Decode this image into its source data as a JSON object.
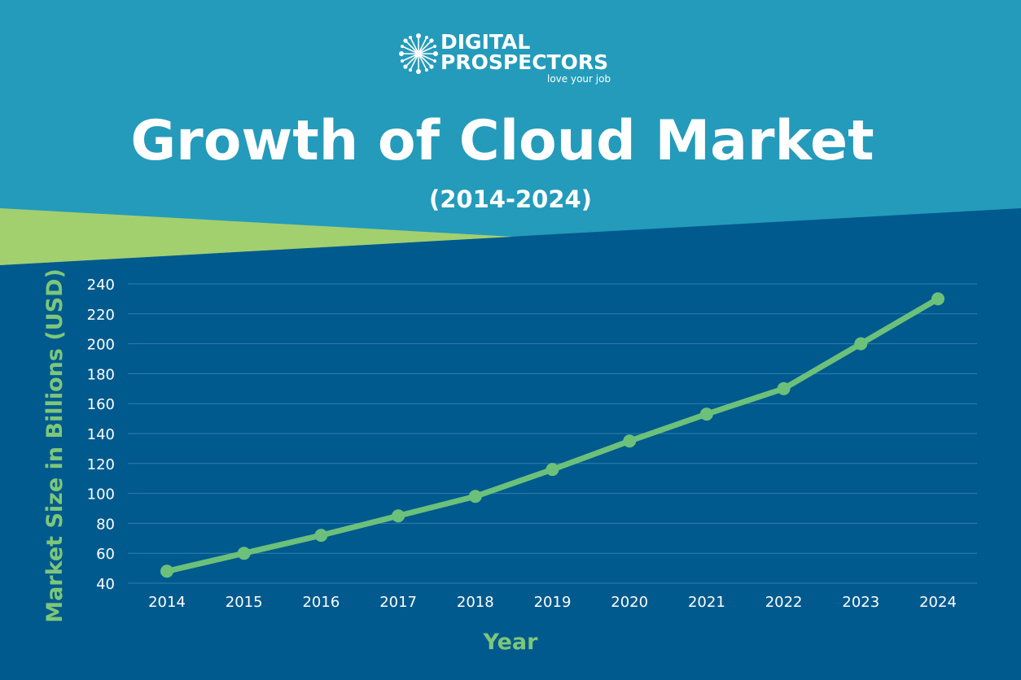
{
  "brand": {
    "name_line1": "DIGITAL",
    "name_line2": "PROSPECTORS",
    "tagline": "love your job"
  },
  "colors": {
    "background_top": "#249bbb",
    "background_bottom": "#005a8e",
    "accent_green": "#a3d06f",
    "line": "#6cc17a",
    "gridline": "#2f7fae",
    "text": "#ffffff",
    "axis_title": "#7dc77a"
  },
  "chart_data": {
    "type": "line",
    "title": "Growth of Cloud Market",
    "subtitle": "(2014-2024)",
    "xlabel": "Year",
    "ylabel": "Market Size in Billions (USD)",
    "ylim": [
      40,
      240
    ],
    "yticks": [
      40,
      60,
      80,
      100,
      120,
      140,
      160,
      180,
      200,
      220,
      240
    ],
    "grid": true,
    "categories": [
      "2014",
      "2015",
      "2016",
      "2017",
      "2018",
      "2019",
      "2020",
      "2021",
      "2022",
      "2023",
      "2024"
    ],
    "series": [
      {
        "values": [
          48,
          60,
          72,
          85,
          98,
          116,
          135,
          153,
          170,
          200,
          230
        ]
      }
    ]
  }
}
